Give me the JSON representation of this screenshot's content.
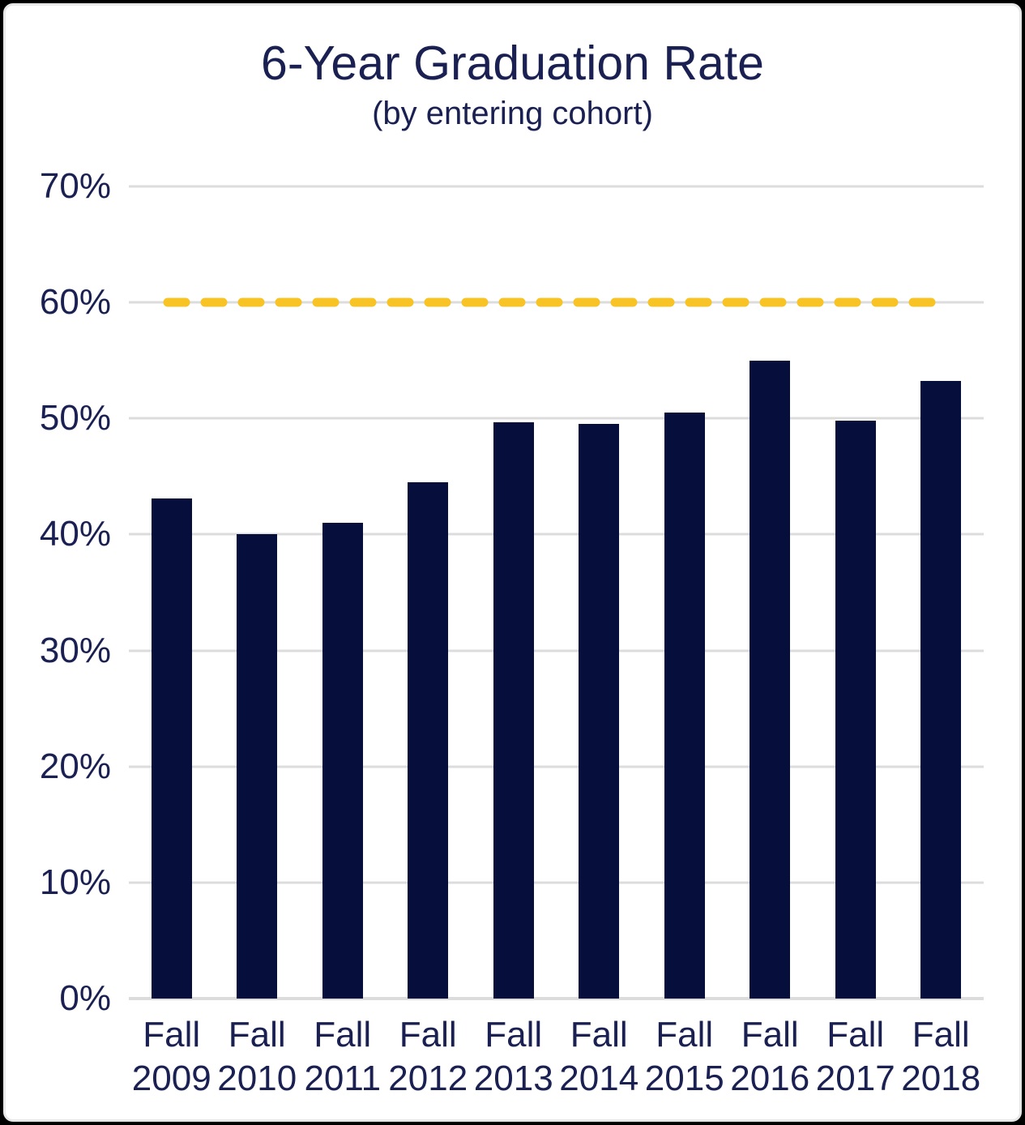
{
  "chart_data": {
    "type": "bar",
    "title": "6-Year Graduation Rate",
    "subtitle": "(by entering cohort)",
    "categories": [
      {
        "line1": "Fall",
        "line2": "2009"
      },
      {
        "line1": "Fall",
        "line2": "2010"
      },
      {
        "line1": "Fall",
        "line2": "2011"
      },
      {
        "line1": "Fall",
        "line2": "2012"
      },
      {
        "line1": "Fall",
        "line2": "2013"
      },
      {
        "line1": "Fall",
        "line2": "2014"
      },
      {
        "line1": "Fall",
        "line2": "2015"
      },
      {
        "line1": "Fall",
        "line2": "2016"
      },
      {
        "line1": "Fall",
        "line2": "2017"
      },
      {
        "line1": "Fall",
        "line2": "2018"
      }
    ],
    "values": [
      43.1,
      40.0,
      41.0,
      44.5,
      49.7,
      49.5,
      50.5,
      55.0,
      49.8,
      53.2
    ],
    "unit": "%",
    "ylim": [
      0,
      70
    ],
    "yticks": [
      {
        "value": 70,
        "label": "70%"
      },
      {
        "value": 60,
        "label": "60%"
      },
      {
        "value": 50,
        "label": "50%"
      },
      {
        "value": 40,
        "label": "40%"
      },
      {
        "value": 30,
        "label": "30%"
      },
      {
        "value": 20,
        "label": "20%"
      },
      {
        "value": 10,
        "label": "10%"
      },
      {
        "value": 0,
        "label": "0%"
      }
    ],
    "grid": true,
    "legend_position": "none",
    "reference_line": {
      "value": 60,
      "style": "dashed"
    },
    "colors": {
      "bar": "#060e3c",
      "text": "#1a2152",
      "gridline": "#dcdcdc",
      "reference": "#f7c325",
      "background": "#ffffff",
      "border": "#000000"
    }
  }
}
